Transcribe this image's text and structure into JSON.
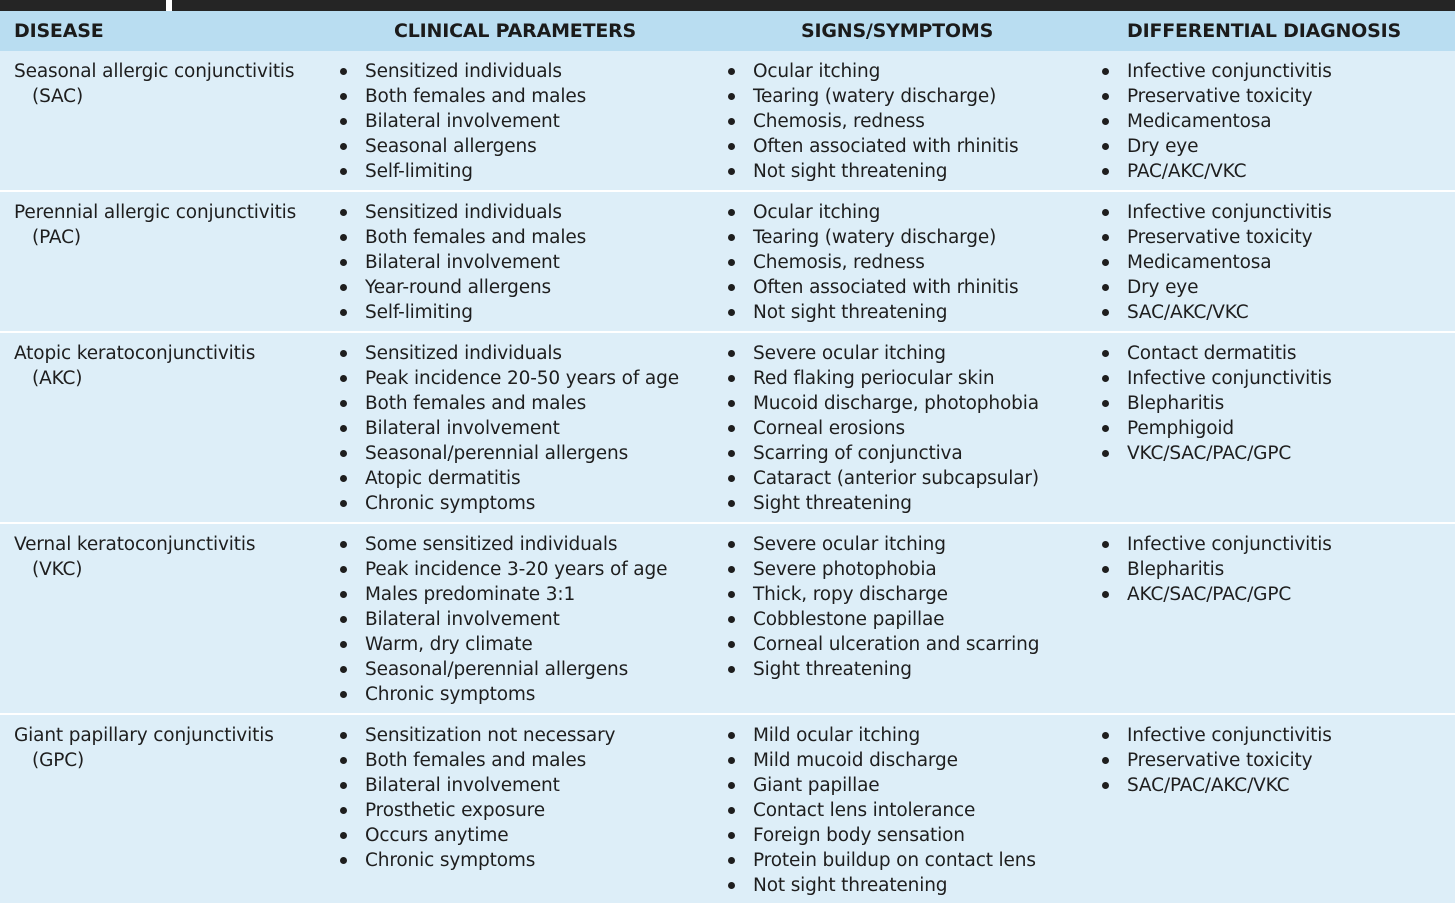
{
  "header": {
    "disease": "DISEASE",
    "clinical": "CLINICAL PARAMETERS",
    "signs": "SIGNS/SYMPTOMS",
    "differential": "DIFFERENTIAL DIAGNOSIS"
  },
  "rows": [
    {
      "name": "Seasonal allergic conjunctivitis",
      "abbr": "(SAC)",
      "clinical": [
        "Sensitized individuals",
        "Both females and males",
        "Bilateral involvement",
        "Seasonal allergens",
        "Self-limiting"
      ],
      "signs": [
        "Ocular itching",
        "Tearing (watery discharge)",
        "Chemosis, redness",
        "Often associated with rhinitis",
        "Not sight threatening"
      ],
      "differential": [
        "Infective conjunctivitis",
        "Preservative toxicity",
        "Medicamentosa",
        "Dry eye",
        "PAC/AKC/VKC"
      ]
    },
    {
      "name": "Perennial allergic conjunctivitis",
      "abbr": "(PAC)",
      "clinical": [
        "Sensitized individuals",
        "Both females and males",
        "Bilateral involvement",
        "Year-round allergens",
        "Self-limiting"
      ],
      "signs": [
        "Ocular itching",
        "Tearing (watery discharge)",
        "Chemosis, redness",
        "Often associated with rhinitis",
        "Not sight threatening"
      ],
      "differential": [
        "Infective conjunctivitis",
        "Preservative toxicity",
        "Medicamentosa",
        "Dry eye",
        "SAC/AKC/VKC"
      ]
    },
    {
      "name": "Atopic keratoconjunctivitis",
      "abbr": "(AKC)",
      "clinical": [
        "Sensitized individuals",
        "Peak incidence 20-50 years of age",
        "Both females and males",
        "Bilateral involvement",
        "Seasonal/perennial allergens",
        "Atopic dermatitis",
        "Chronic symptoms"
      ],
      "signs": [
        "Severe ocular itching",
        "Red flaking periocular skin",
        "Mucoid discharge, photophobia",
        "Corneal erosions",
        "Scarring of conjunctiva",
        "Cataract (anterior subcapsular)",
        "Sight threatening"
      ],
      "differential": [
        "Contact dermatitis",
        "Infective conjunctivitis",
        "Blepharitis",
        "Pemphigoid",
        "VKC/SAC/PAC/GPC"
      ]
    },
    {
      "name": "Vernal keratoconjunctivitis",
      "abbr": "(VKC)",
      "clinical": [
        "Some sensitized individuals",
        "Peak incidence 3-20 years of age",
        "Males predominate 3:1",
        "Bilateral involvement",
        "Warm, dry climate",
        "Seasonal/perennial allergens",
        "Chronic symptoms"
      ],
      "signs": [
        "Severe ocular itching",
        "Severe photophobia",
        "Thick, ropy discharge",
        "Cobblestone papillae",
        "Corneal ulceration and scarring",
        "Sight threatening"
      ],
      "differential": [
        "Infective conjunctivitis",
        "Blepharitis",
        "AKC/SAC/PAC/GPC"
      ]
    },
    {
      "name": "Giant papillary conjunctivitis",
      "abbr": "(GPC)",
      "clinical": [
        "Sensitization not necessary",
        "Both females and males",
        "Bilateral involvement",
        "Prosthetic exposure",
        "Occurs anytime",
        "Chronic symptoms"
      ],
      "signs": [
        "Mild ocular itching",
        "Mild mucoid discharge",
        "Giant papillae",
        "Contact lens intolerance",
        "Foreign body sensation",
        "Protein buildup on contact lens",
        "Not sight threatening"
      ],
      "differential": [
        "Infective conjunctivitis",
        "Preservative toxicity",
        "SAC/PAC/AKC/VKC"
      ]
    }
  ]
}
